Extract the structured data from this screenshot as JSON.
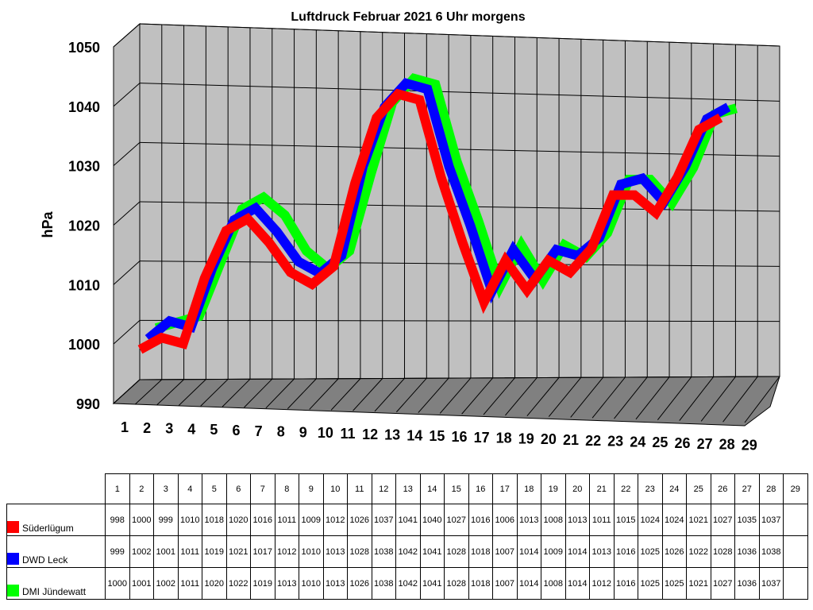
{
  "chart_data": {
    "type": "line",
    "title": "Luftdruck Februar 2021 6 Uhr morgens",
    "ylabel": "hPa",
    "xlabel": "",
    "ylim": [
      990,
      1050
    ],
    "yticks": [
      990,
      1000,
      1010,
      1020,
      1030,
      1040,
      1050
    ],
    "categories": [
      "1",
      "2",
      "3",
      "4",
      "5",
      "6",
      "7",
      "8",
      "9",
      "10",
      "11",
      "12",
      "13",
      "14",
      "15",
      "16",
      "17",
      "18",
      "19",
      "20",
      "21",
      "22",
      "23",
      "24",
      "25",
      "26",
      "27",
      "28",
      "29"
    ],
    "series": [
      {
        "name": "Süderlügum",
        "color": "#ff0000",
        "values": [
          998,
          1000,
          999,
          1010,
          1018,
          1020,
          1016,
          1011,
          1009,
          1012,
          1026,
          1037,
          1041,
          1040,
          1027,
          1016,
          1006,
          1013,
          1008,
          1013,
          1011,
          1015,
          1024,
          1024,
          1021,
          1027,
          1035,
          1037,
          null
        ]
      },
      {
        "name": "DWD Leck",
        "color": "#0000ff",
        "values": [
          999,
          1002,
          1001,
          1011,
          1019,
          1021,
          1017,
          1012,
          1010,
          1013,
          1028,
          1038,
          1042,
          1041,
          1028,
          1018,
          1007,
          1014,
          1009,
          1014,
          1013,
          1016,
          1025,
          1026,
          1022,
          1028,
          1036,
          1038,
          null
        ]
      },
      {
        "name": "DMI Jündewatt",
        "color": "#00ff00",
        "values": [
          1000,
          1001,
          1002,
          1011,
          1020,
          1022,
          1019,
          1013,
          1010,
          1013,
          1026,
          1038,
          1042,
          1041,
          1028,
          1018,
          1007,
          1014,
          1008,
          1014,
          1012,
          1016,
          1025,
          1025,
          1021,
          1027,
          1036,
          1037,
          null
        ]
      }
    ],
    "grid": true,
    "legend": "table-below"
  }
}
